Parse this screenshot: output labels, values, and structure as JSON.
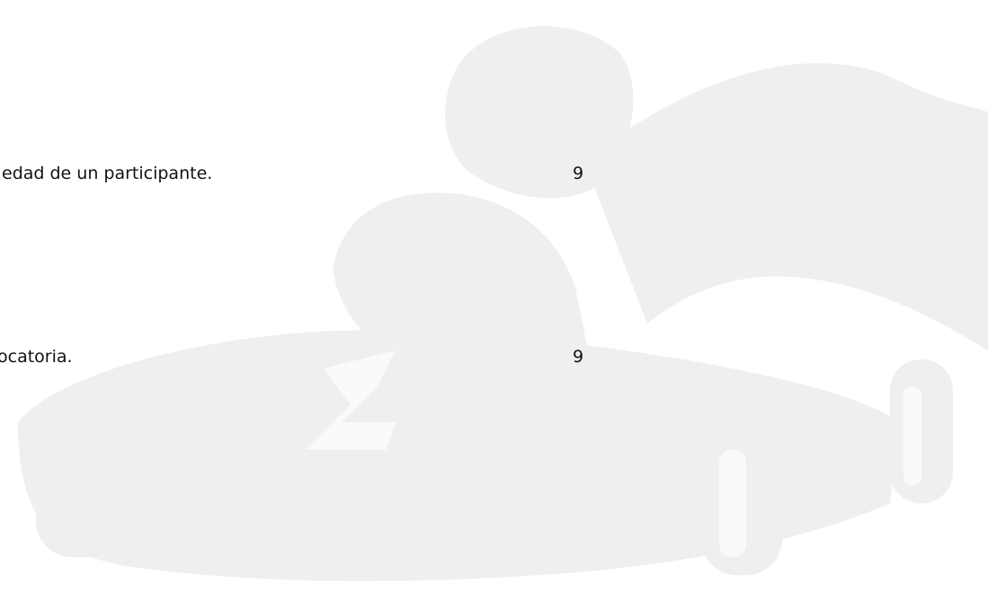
{
  "rows": [
    {
      "text": "edad de un participante.",
      "page": "9"
    },
    {
      "text": "ocatoria.",
      "page": "9"
    }
  ]
}
